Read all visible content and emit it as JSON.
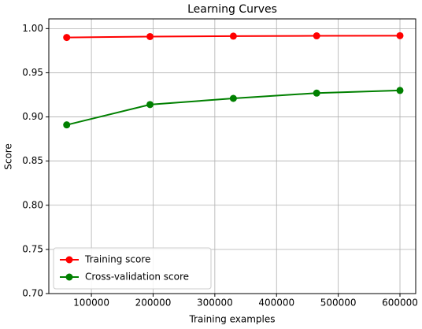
{
  "chart_data": {
    "type": "line",
    "title": "Learning Curves",
    "x_label": "Training examples",
    "y_label": "Score",
    "x": [
      60000,
      195000,
      330000,
      465000,
      600000
    ],
    "series": [
      {
        "name": "Training score",
        "color": "#ff0000",
        "values": [
          0.99,
          0.991,
          0.9915,
          0.9918,
          0.992
        ]
      },
      {
        "name": "Cross-validation score",
        "color": "#008000",
        "values": [
          0.891,
          0.914,
          0.921,
          0.927,
          0.93
        ]
      }
    ],
    "xlim": [
      31000,
      625500
    ],
    "ylim": [
      0.7,
      1.011
    ],
    "xticks": [
      100000,
      200000,
      300000,
      400000,
      500000,
      600000
    ],
    "yticks": [
      {
        "value": 0.7,
        "label": "0.70"
      },
      0.75,
      {
        "value": 0.8,
        "label": "0.80"
      },
      0.85,
      {
        "value": 0.9,
        "label": "0.90"
      },
      0.95,
      {
        "value": 1.0,
        "label": "1.00"
      }
    ],
    "grid": true,
    "legend": "lower left"
  }
}
